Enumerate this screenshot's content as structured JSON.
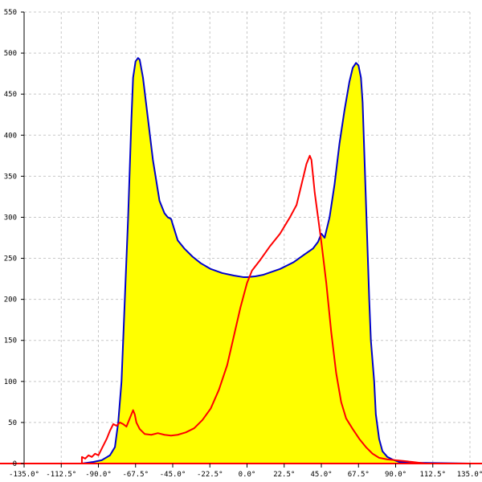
{
  "chart_data": {
    "type": "area",
    "title": "",
    "xlabel": "",
    "ylabel": "",
    "xlim": [
      -135,
      135
    ],
    "ylim": [
      0,
      550
    ],
    "grid": true,
    "x_ticks": [
      -135,
      -112.5,
      -90,
      -67.5,
      -45,
      -22.5,
      0,
      22.5,
      45,
      67.5,
      90,
      112.5,
      135
    ],
    "x_tick_labels": [
      "-135.0°",
      "-112.5°",
      "-90.0°",
      "-67.5°",
      "-45.0°",
      "-22.5°",
      "0.0°",
      "22.5°",
      "45.0°",
      "67.5°",
      "90.0°",
      "112.5°",
      "135.0°"
    ],
    "y_ticks": [
      0,
      50,
      100,
      150,
      200,
      250,
      300,
      350,
      400,
      450,
      500,
      550
    ],
    "y_tick_labels": [
      "0",
      "50",
      "100",
      "150",
      "200",
      "250",
      "300",
      "350",
      "400",
      "450",
      "500",
      "550"
    ],
    "fill_color": "#ffff00",
    "series": [
      {
        "color": "#0000cc",
        "fill": true,
        "points": [
          [
            -135,
            0
          ],
          [
            -100,
            0
          ],
          [
            -93,
            2
          ],
          [
            -88,
            4
          ],
          [
            -83,
            10
          ],
          [
            -80,
            20
          ],
          [
            -78,
            50
          ],
          [
            -76,
            100
          ],
          [
            -75,
            150
          ],
          [
            -74,
            200
          ],
          [
            -73,
            250
          ],
          [
            -72,
            300
          ],
          [
            -71,
            360
          ],
          [
            -70,
            420
          ],
          [
            -69,
            470
          ],
          [
            -67.5,
            490
          ],
          [
            -66,
            494
          ],
          [
            -65,
            492
          ],
          [
            -63,
            470
          ],
          [
            -60,
            420
          ],
          [
            -57,
            370
          ],
          [
            -53,
            320
          ],
          [
            -50,
            305
          ],
          [
            -48,
            300
          ],
          [
            -46,
            298
          ],
          [
            -44,
            285
          ],
          [
            -42,
            272
          ],
          [
            -38,
            262
          ],
          [
            -33,
            252
          ],
          [
            -28,
            244
          ],
          [
            -22,
            237
          ],
          [
            -15,
            232
          ],
          [
            -8,
            229
          ],
          [
            -2,
            227
          ],
          [
            0,
            227
          ],
          [
            5,
            228
          ],
          [
            10,
            230
          ],
          [
            20,
            237
          ],
          [
            28,
            245
          ],
          [
            35,
            255
          ],
          [
            40,
            262
          ],
          [
            43,
            270
          ],
          [
            45,
            280
          ],
          [
            47,
            275
          ],
          [
            50,
            300
          ],
          [
            53,
            340
          ],
          [
            56,
            390
          ],
          [
            59,
            430
          ],
          [
            62,
            465
          ],
          [
            64,
            482
          ],
          [
            66,
            488
          ],
          [
            67.5,
            485
          ],
          [
            69,
            470
          ],
          [
            70,
            440
          ],
          [
            71,
            380
          ],
          [
            72,
            320
          ],
          [
            73,
            260
          ],
          [
            74,
            200
          ],
          [
            75,
            150
          ],
          [
            77,
            100
          ],
          [
            78,
            60
          ],
          [
            80,
            30
          ],
          [
            82,
            15
          ],
          [
            85,
            8
          ],
          [
            88,
            5
          ],
          [
            92,
            2
          ],
          [
            100,
            1
          ],
          [
            135,
            0
          ]
        ]
      },
      {
        "color": "#ff0000",
        "fill": false,
        "points": [
          [
            -135,
            0
          ],
          [
            -100,
            0
          ],
          [
            -100,
            8
          ],
          [
            -98,
            6
          ],
          [
            -96,
            10
          ],
          [
            -94,
            8
          ],
          [
            -92,
            12
          ],
          [
            -90,
            10
          ],
          [
            -88,
            18
          ],
          [
            -85,
            30
          ],
          [
            -83,
            40
          ],
          [
            -81,
            48
          ],
          [
            -79,
            46
          ],
          [
            -77,
            50
          ],
          [
            -75,
            48
          ],
          [
            -73,
            45
          ],
          [
            -71,
            55
          ],
          [
            -69,
            65
          ],
          [
            -68,
            60
          ],
          [
            -67,
            50
          ],
          [
            -65,
            42
          ],
          [
            -62,
            36
          ],
          [
            -58,
            35
          ],
          [
            -54,
            37
          ],
          [
            -50,
            35
          ],
          [
            -46,
            34
          ],
          [
            -42,
            35
          ],
          [
            -37,
            38
          ],
          [
            -32,
            43
          ],
          [
            -27,
            53
          ],
          [
            -22,
            67
          ],
          [
            -17,
            90
          ],
          [
            -12,
            120
          ],
          [
            -8,
            155
          ],
          [
            -4,
            190
          ],
          [
            0,
            220
          ],
          [
            3,
            235
          ],
          [
            8,
            248
          ],
          [
            14,
            265
          ],
          [
            20,
            280
          ],
          [
            26,
            300
          ],
          [
            30,
            315
          ],
          [
            33,
            340
          ],
          [
            36,
            365
          ],
          [
            38,
            375
          ],
          [
            39,
            370
          ],
          [
            41,
            330
          ],
          [
            43,
            300
          ],
          [
            45,
            270
          ],
          [
            48,
            220
          ],
          [
            51,
            160
          ],
          [
            54,
            110
          ],
          [
            57,
            75
          ],
          [
            60,
            55
          ],
          [
            64,
            42
          ],
          [
            68,
            30
          ],
          [
            72,
            20
          ],
          [
            76,
            12
          ],
          [
            80,
            7
          ],
          [
            85,
            5
          ],
          [
            90,
            4
          ],
          [
            95,
            3
          ],
          [
            100,
            2
          ],
          [
            108,
            0
          ],
          [
            135,
            0
          ]
        ]
      }
    ]
  }
}
